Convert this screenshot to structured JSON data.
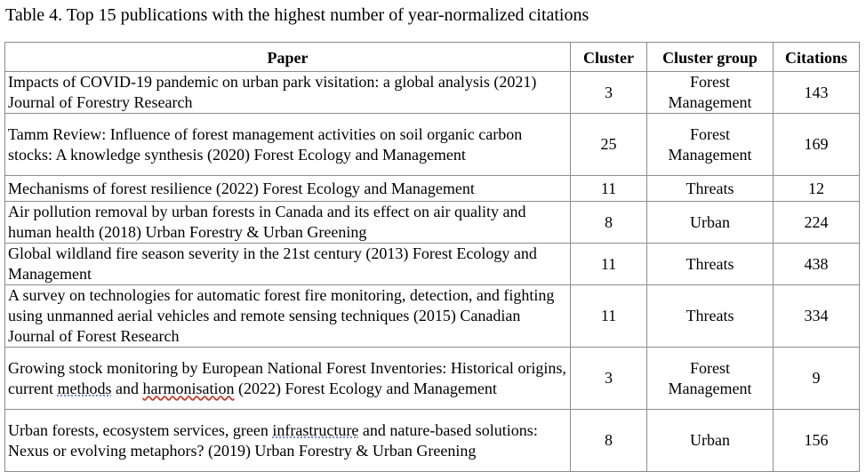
{
  "caption": "Table 4. Top 15 publications with the highest number of year-normalized citations",
  "headers": {
    "paper": "Paper",
    "cluster": "Cluster",
    "group": "Cluster group",
    "citations": "Citations"
  },
  "rows": [
    {
      "paper": "Impacts of COVID-19 pandemic on urban park visitation: a global analysis (2021) Journal of Forestry Research",
      "cluster": "3",
      "group": "Forest Management",
      "citations": "143"
    },
    {
      "paper": "Tamm Review: Influence of forest management activities on soil organic carbon stocks: A knowledge synthesis (2020) Forest Ecology and Management",
      "cluster": "25",
      "group": "Forest Management",
      "citations": "169"
    },
    {
      "paper": "Mechanisms of forest resilience (2022) Forest Ecology and Management",
      "cluster": "11",
      "group": "Threats",
      "citations": "12"
    },
    {
      "paper": "Air pollution removal by urban forests in Canada and its effect on air quality and human health (2018) Urban Forestry & Urban Greening",
      "cluster": "8",
      "group": "Urban",
      "citations": "224"
    },
    {
      "paper": "Global wildland fire season severity in the 21st century (2013) Forest Ecology and Management",
      "cluster": "11",
      "group": "Threats",
      "citations": "438"
    },
    {
      "paper": "A survey on technologies for automatic forest fire monitoring, detection, and fighting using unmanned aerial vehicles and remote sensing techniques (2015) Canadian Journal of Forest Research",
      "cluster": "11",
      "group": "Threats",
      "citations": "334"
    },
    {
      "paper_parts": [
        "Growing stock monitoring by European National Forest Inventories: Historical origins, current ",
        "methods",
        " and ",
        "harmonisation",
        " (2022) Forest Ecology and Management"
      ],
      "cluster": "3",
      "group": "Forest Management",
      "citations": "9"
    },
    {
      "paper_parts": [
        "Urban forests, ecosystem services, green ",
        "infrastructure",
        " and nature-based solutions: Nexus or evolving metaphors? (2019) Urban Forestry & Urban Greening"
      ],
      "cluster": "8",
      "group": "Urban",
      "citations": "156"
    }
  ]
}
